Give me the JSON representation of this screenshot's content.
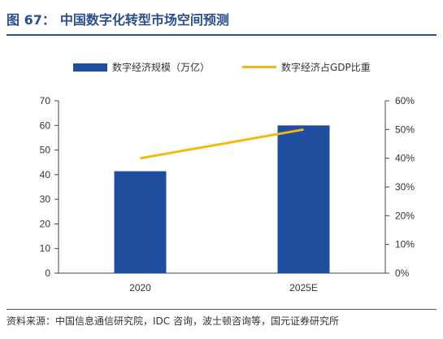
{
  "header": {
    "title_prefix": "图 67：",
    "title": "中国数字化转型市场空间预测"
  },
  "chart_data": {
    "type": "bar",
    "categories": [
      "2020",
      "2025E"
    ],
    "series": [
      {
        "name": "数字经济规模（万亿）",
        "type": "bar",
        "axis": "left",
        "values": [
          41.4,
          60
        ],
        "color": "#1f4e9e"
      },
      {
        "name": "数字经济占GDP比重",
        "type": "line",
        "axis": "right",
        "values": [
          40.0,
          50.0
        ],
        "color": "#f2b90f"
      }
    ],
    "ylim_left": [
      0,
      70
    ],
    "yticks_left": [
      "0",
      "10",
      "20",
      "30",
      "40",
      "50",
      "60",
      "70"
    ],
    "ylim_right": [
      0,
      60
    ],
    "yticks_right": [
      "0%",
      "10%",
      "20%",
      "30%",
      "40%",
      "50%",
      "60%"
    ]
  },
  "footer": {
    "source": "资料来源：中国信息通信研究院，IDC 咨询，波士顿咨询等，国元证券研究所"
  }
}
